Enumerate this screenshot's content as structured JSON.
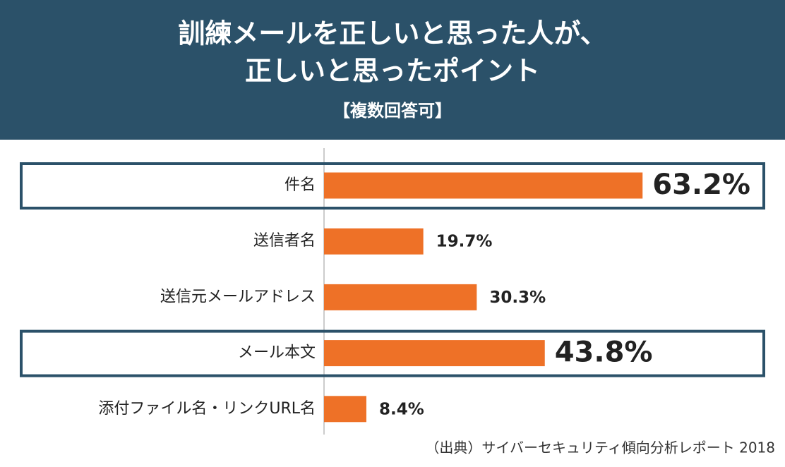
{
  "chart_data": {
    "type": "bar",
    "orientation": "horizontal",
    "title": [
      "訓練メールを正しいと思った人が、",
      "正しいと思ったポイント"
    ],
    "subtitle": "【複数回答可】",
    "categories": [
      "件名",
      "送信者名",
      "送信元メールアドレス",
      "メール本文",
      "添付ファイル名・リンクURL名"
    ],
    "values": [
      63.2,
      19.7,
      30.3,
      43.8,
      8.4
    ],
    "value_labels": [
      "63.2%",
      "19.7%",
      "30.3%",
      "43.8%",
      "8.4%"
    ],
    "highlighted": [
      true,
      false,
      false,
      true,
      false
    ],
    "color": "#ee7127",
    "source": "（出典）サイバーセキュリティ傾向分析レポート 2018"
  }
}
